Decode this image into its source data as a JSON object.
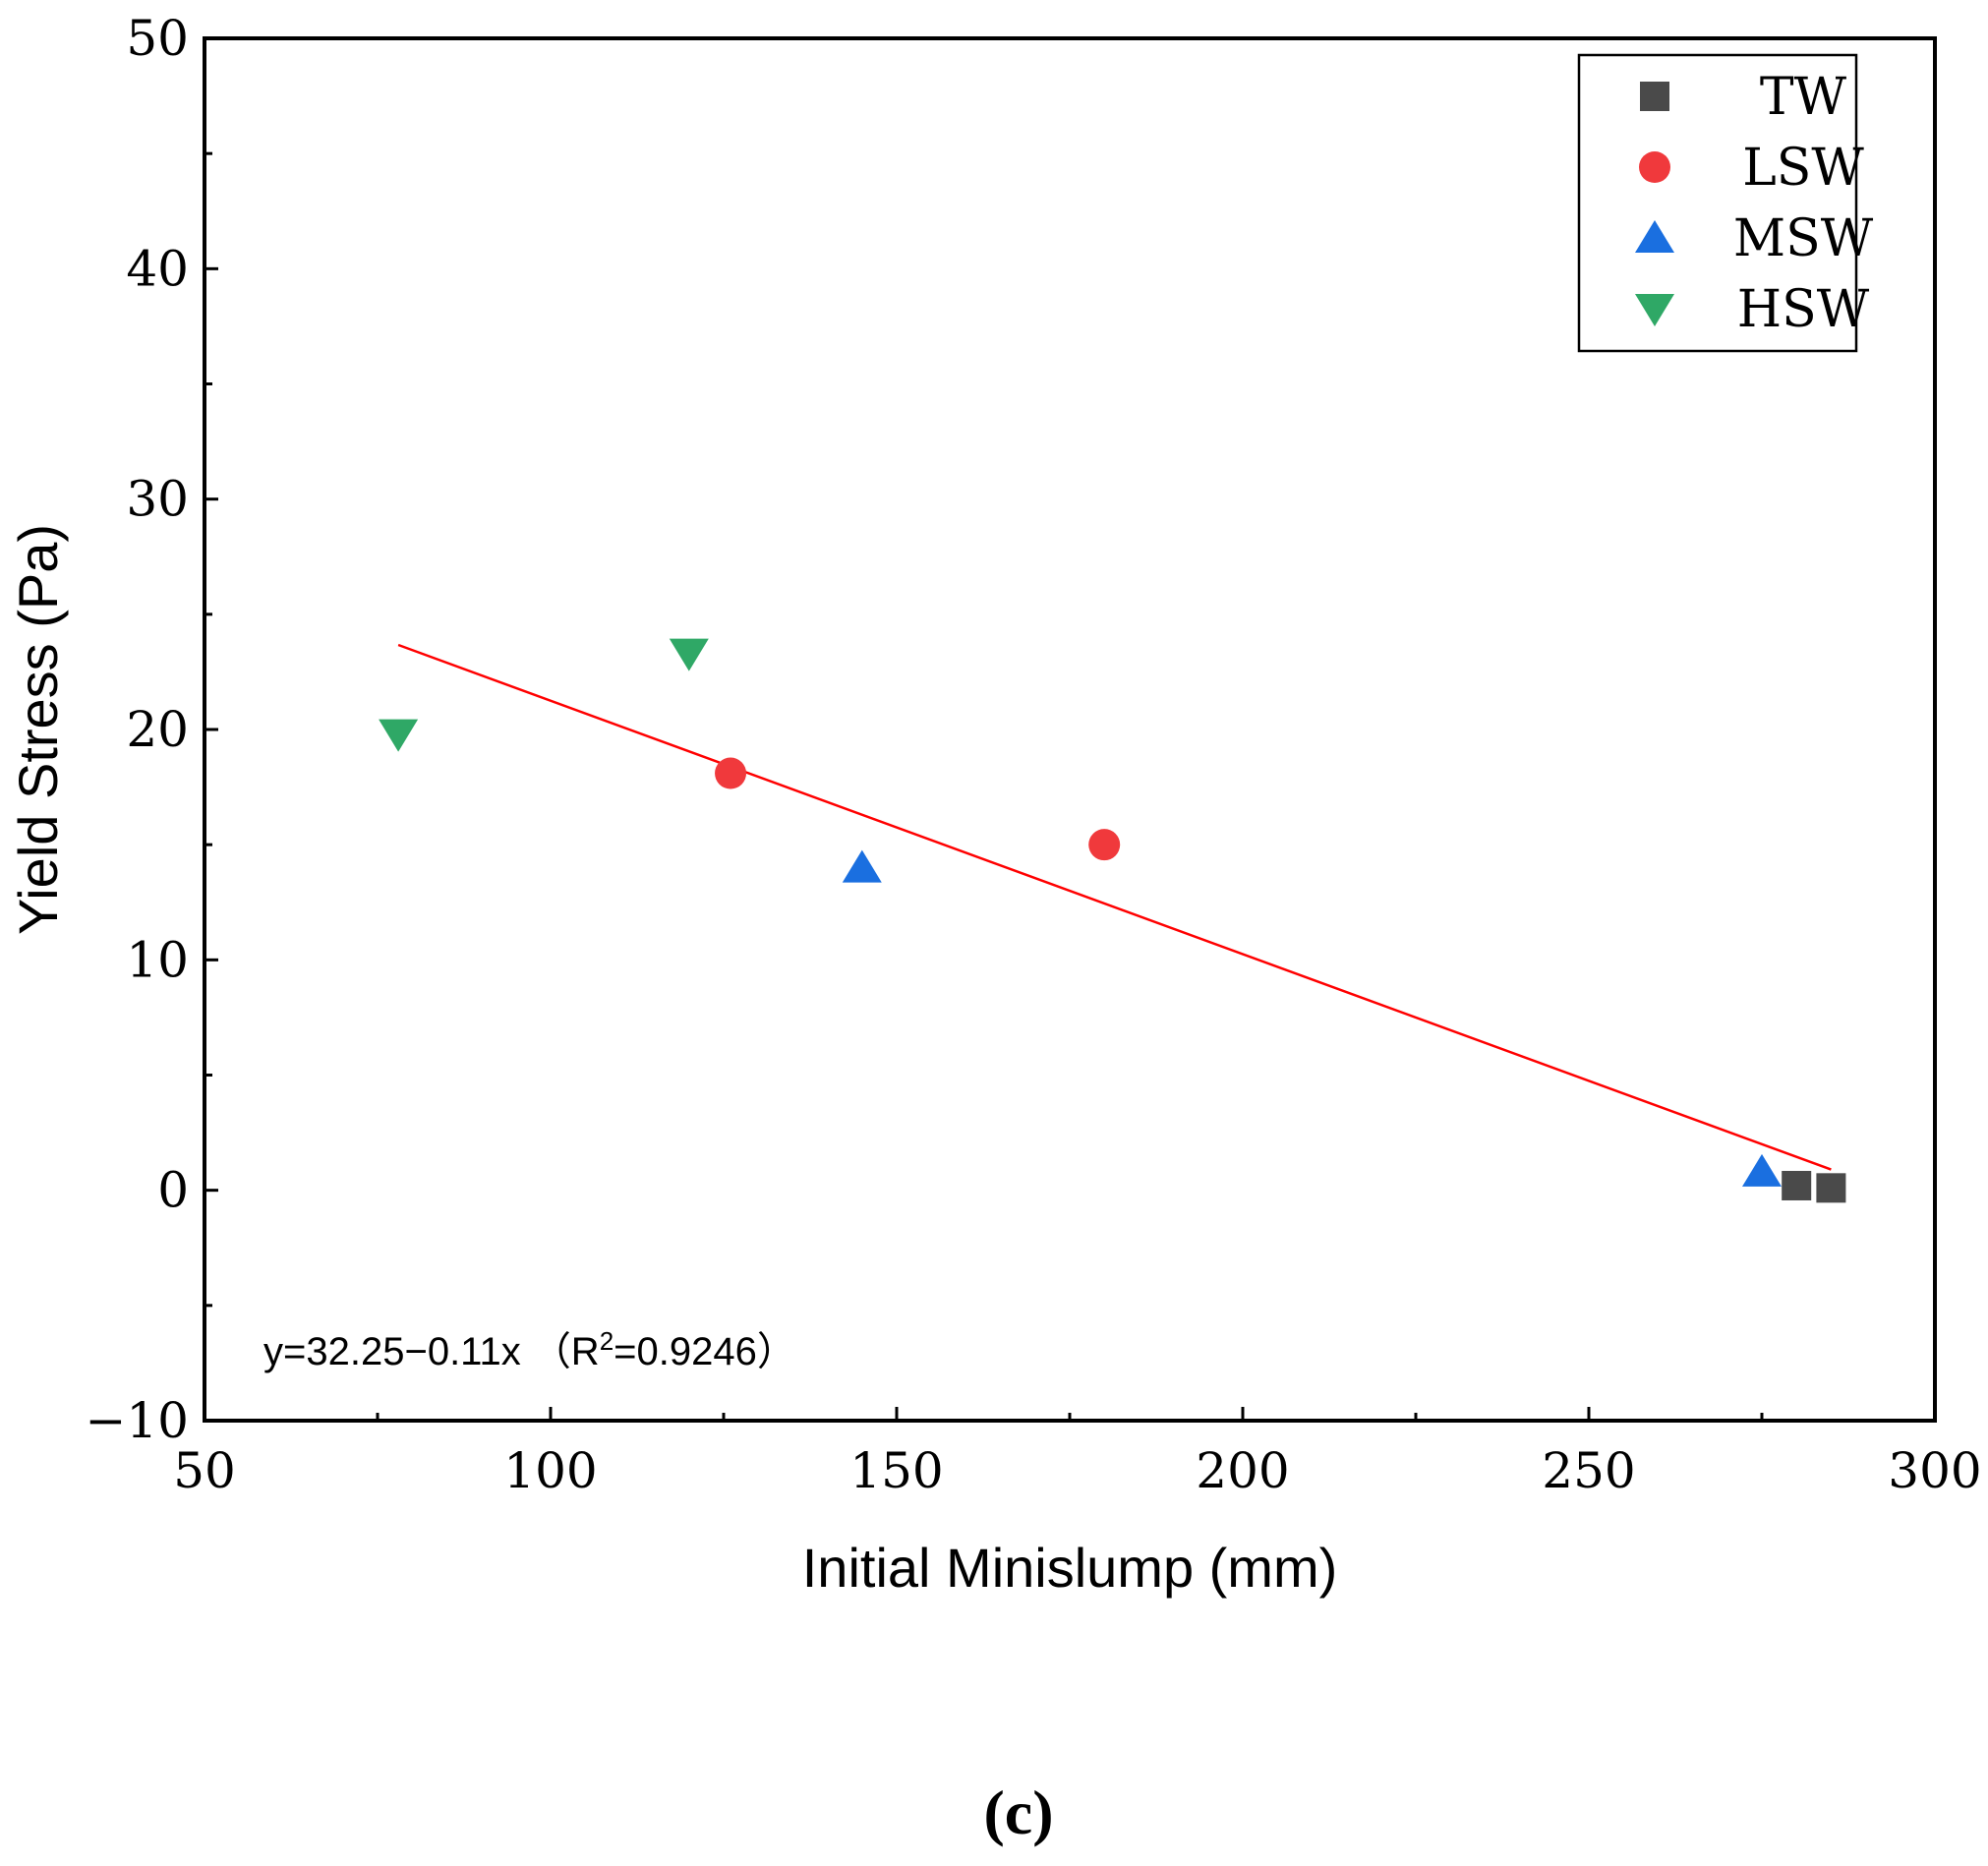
{
  "chart_data": {
    "type": "scatter",
    "xlabel": "Initial Minislump (mm)",
    "ylabel": "Yield Stress (Pa)",
    "xlim": [
      50,
      300
    ],
    "ylim": [
      -10,
      50
    ],
    "xticks": [
      50,
      100,
      150,
      200,
      250,
      300
    ],
    "yticks": [
      -10,
      0,
      10,
      20,
      30,
      40,
      50
    ],
    "xtick_labels": [
      "50",
      "100",
      "150",
      "200",
      "250",
      "300"
    ],
    "ytick_labels": [
      "−10",
      "0",
      "10",
      "20",
      "30",
      "40",
      "50"
    ],
    "legend_position": "top-right",
    "series": [
      {
        "name": "TW",
        "marker": "square",
        "color": "#4a4a4a",
        "points": [
          [
            280,
            0.2
          ],
          [
            285,
            0.1
          ]
        ]
      },
      {
        "name": "LSW",
        "marker": "circle",
        "color": "#f0393c",
        "points": [
          [
            126,
            18.1
          ],
          [
            180,
            15.0
          ]
        ]
      },
      {
        "name": "MSW",
        "marker": "triangle-up",
        "color": "#1a6fe0",
        "points": [
          [
            145,
            14.0
          ],
          [
            275,
            0.8
          ]
        ]
      },
      {
        "name": "HSW",
        "marker": "triangle-down",
        "color": "#2fa866",
        "points": [
          [
            78,
            19.8
          ],
          [
            120,
            23.3
          ]
        ]
      }
    ],
    "fit_line": {
      "color": "#ff0000",
      "intercept": 32.25,
      "slope": -0.11,
      "x_range": [
        78,
        285
      ],
      "equation_text": "y=32.25−0.11x  （R",
      "equation_sup": "2",
      "equation_tail": "=0.9246）"
    }
  },
  "panel_label": "(c)"
}
